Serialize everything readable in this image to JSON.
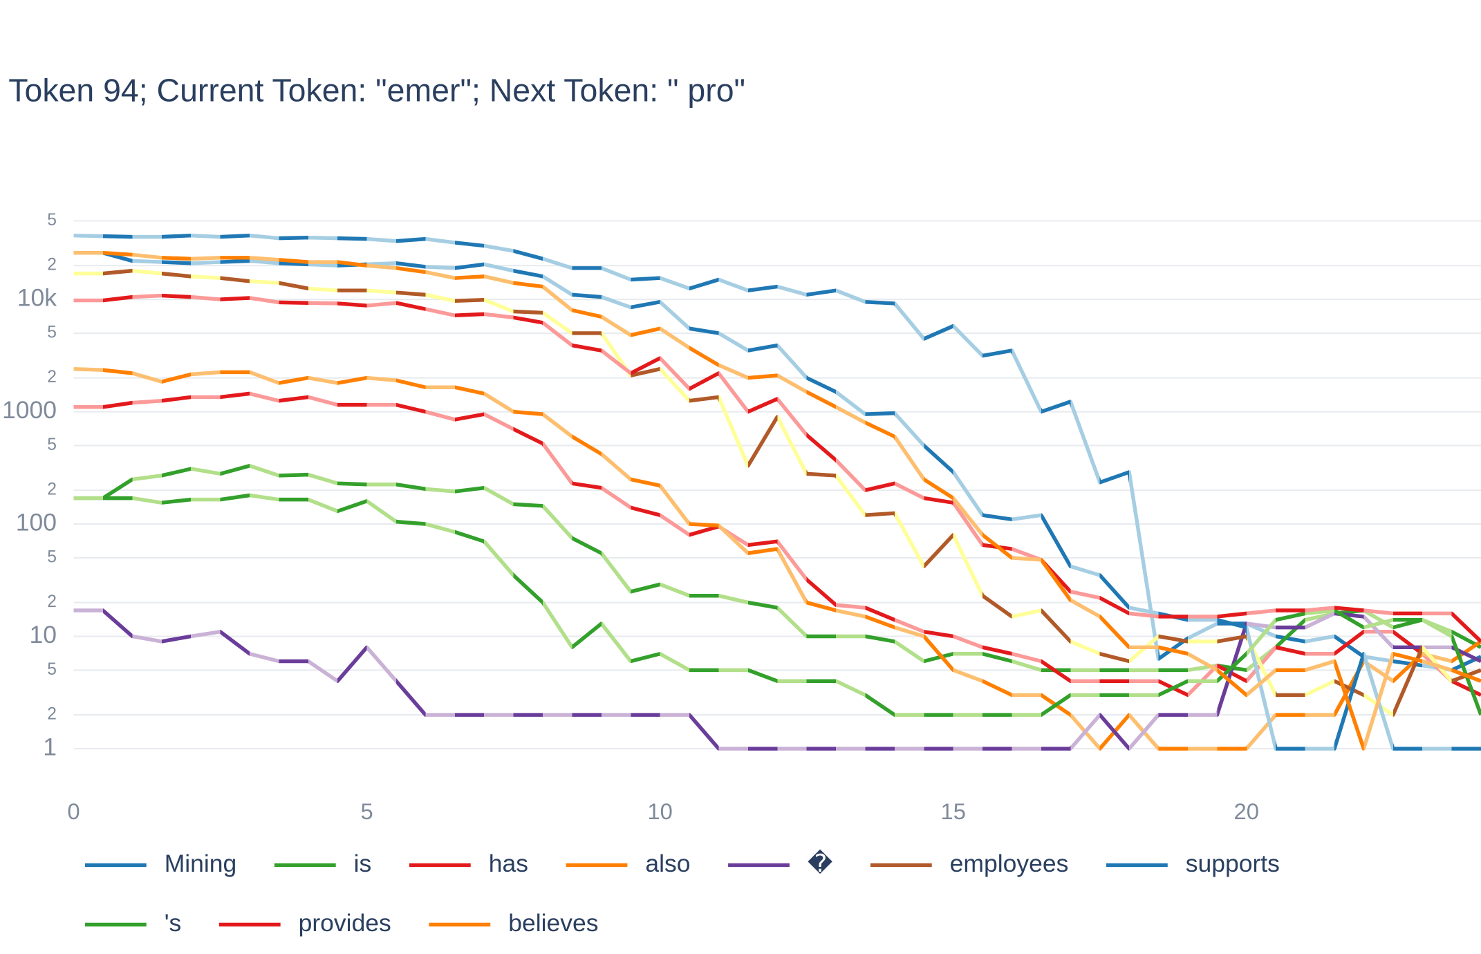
{
  "chart_data": {
    "type": "line",
    "title": "Token 94; Current Token: \"emer\"; Next Token: \" pro\"",
    "log_y": true,
    "grid": true,
    "xlim": [
      0,
      24
    ],
    "xticks": [
      0,
      5,
      10,
      15,
      20
    ],
    "ylim": [
      0.4,
      80000
    ],
    "yticks": [
      1,
      2,
      5,
      10,
      {
        "value": 20,
        "label": "2"
      },
      {
        "value": 50,
        "label": "5"
      },
      100,
      {
        "value": 200,
        "label": "2"
      },
      {
        "value": 500,
        "label": "5"
      },
      1000,
      {
        "value": 2000,
        "label": "2"
      },
      {
        "value": 5000,
        "label": "5"
      },
      {
        "value": 10000,
        "label": "10k"
      },
      {
        "value": 20000,
        "label": "2"
      },
      {
        "value": 50000,
        "label": "5"
      }
    ],
    "x": [
      0,
      0.5,
      1,
      1.5,
      2,
      2.5,
      3,
      3.5,
      4,
      4.5,
      5,
      5.5,
      6,
      6.5,
      7,
      7.5,
      8,
      8.5,
      9,
      9.5,
      10,
      10.5,
      11,
      11.5,
      12,
      12.5,
      13,
      13.5,
      14,
      14.5,
      15,
      15.5,
      16,
      16.5,
      17,
      17.5,
      18,
      18.5,
      19,
      19.5,
      20,
      20.5,
      21,
      21.5,
      22,
      22.5,
      23,
      23.5,
      24
    ],
    "series": [
      {
        "name": "Mining",
        "color": "#1f78b4",
        "alt_color": "#a6cee3",
        "values": [
          37000,
          36500,
          36000,
          36000,
          37000,
          36000,
          37000,
          35000,
          35500,
          35000,
          34500,
          33000,
          34500,
          32000,
          30000,
          27000,
          23000,
          19000,
          19000,
          15000,
          15500,
          12500,
          15000,
          12000,
          13000,
          11000,
          12000,
          9500,
          9200,
          4450,
          5800,
          3150,
          3500,
          1000,
          1230,
          235,
          290,
          6.3,
          9.6,
          13,
          13,
          10,
          9,
          10,
          6.6,
          6,
          5.5,
          5,
          6.6
        ]
      },
      {
        "name": "is",
        "color": "#33a02c",
        "alt_color": "#b2df8a",
        "values": [
          170,
          170,
          250,
          270,
          310,
          280,
          330,
          270,
          275,
          230,
          225,
          225,
          205,
          195,
          210,
          150,
          145,
          75,
          55,
          25,
          29,
          23,
          23,
          20,
          18,
          10,
          10,
          10,
          9,
          6,
          7,
          7,
          6,
          5,
          5,
          5,
          5,
          5,
          5,
          5.5,
          5,
          8,
          14,
          16,
          17,
          12,
          14,
          11,
          8
        ]
      },
      {
        "name": "has",
        "color": "#e31a1c",
        "alt_color": "#fb9a99",
        "values": [
          1100,
          1100,
          1200,
          1250,
          1350,
          1350,
          1450,
          1250,
          1350,
          1150,
          1150,
          1150,
          1000,
          850,
          950,
          700,
          520,
          230,
          210,
          140,
          120,
          80,
          95,
          65,
          70,
          32,
          19,
          18,
          14,
          11,
          10,
          8,
          7,
          6,
          4,
          4,
          4,
          4,
          3,
          5.5,
          4,
          8,
          7,
          7,
          11,
          11,
          7,
          4,
          3
        ]
      },
      {
        "name": "also",
        "color": "#ff7f00",
        "alt_color": "#fdbf6f",
        "values": [
          2400,
          2350,
          2200,
          1850,
          2150,
          2250,
          2250,
          1800,
          2000,
          1800,
          2000,
          1900,
          1650,
          1650,
          1450,
          1000,
          950,
          600,
          420,
          250,
          220,
          100,
          97,
          55,
          60,
          20,
          17,
          15,
          12,
          10,
          5,
          4,
          3,
          3,
          2,
          1,
          2,
          1,
          1,
          1,
          1,
          2,
          2,
          2,
          6,
          4,
          7,
          6,
          9
        ]
      },
      {
        "name": "�",
        "color": "#6a3d9a",
        "alt_color": "#cab2d6",
        "values": [
          17,
          17,
          10,
          9,
          10,
          11,
          7,
          6,
          6,
          4,
          8,
          4,
          2,
          2,
          2,
          2,
          2,
          2,
          2,
          2,
          2,
          2,
          1,
          1,
          1,
          1,
          1,
          1,
          1,
          1,
          1,
          1,
          1,
          1,
          1,
          2,
          1,
          2,
          2,
          2,
          13,
          12,
          12,
          16,
          15,
          8,
          8,
          8,
          6
        ]
      },
      {
        "name": "employees",
        "color": "#b15928",
        "alt_color": "#ffff99",
        "values": [
          17000,
          17000,
          18000,
          17000,
          16000,
          15500,
          14500,
          14000,
          12500,
          12000,
          12000,
          11500,
          11000,
          9700,
          9900,
          7800,
          7600,
          5000,
          5000,
          2100,
          2400,
          1250,
          1350,
          330,
          900,
          280,
          270,
          120,
          125,
          42,
          80,
          23,
          15,
          17,
          9,
          7,
          6,
          10,
          9,
          9,
          10,
          3,
          3,
          4,
          3,
          2,
          8,
          4,
          5
        ]
      },
      {
        "name": "supports",
        "color": "#1f78b4",
        "alt_color": "#a6cee3",
        "values": [
          26000,
          26000,
          22000,
          21500,
          21000,
          21500,
          22000,
          21000,
          20500,
          20000,
          20500,
          21000,
          19500,
          19000,
          20500,
          18000,
          16000,
          11000,
          10500,
          8500,
          9500,
          5500,
          5000,
          3500,
          3900,
          2000,
          1500,
          950,
          970,
          500,
          290,
          120,
          110,
          120,
          42,
          35,
          18,
          16,
          14,
          14,
          12,
          1,
          1,
          1,
          7,
          1,
          1,
          1,
          1
        ]
      },
      {
        "name": "'s",
        "color": "#33a02c",
        "alt_color": "#b2df8a",
        "values": [
          170,
          170,
          170,
          155,
          165,
          165,
          180,
          165,
          165,
          130,
          160,
          105,
          100,
          85,
          70,
          35,
          20,
          8,
          13,
          6,
          7,
          5,
          5,
          5,
          4,
          4,
          4,
          3,
          2,
          2,
          2,
          2,
          2,
          2,
          3,
          3,
          3,
          3,
          4,
          4,
          7,
          14,
          16,
          17,
          12,
          14,
          14,
          10,
          2
        ]
      },
      {
        "name": "provides",
        "color": "#e31a1c",
        "alt_color": "#fb9a99",
        "values": [
          9800,
          9800,
          10500,
          10800,
          10500,
          10000,
          10300,
          9400,
          9300,
          9200,
          8800,
          9300,
          8200,
          7200,
          7400,
          6900,
          6200,
          3900,
          3500,
          2200,
          3000,
          1600,
          2200,
          1000,
          1300,
          620,
          370,
          200,
          230,
          170,
          155,
          65,
          60,
          48,
          25,
          22,
          16,
          15,
          15,
          15,
          16,
          17,
          17,
          18,
          17,
          16,
          16,
          16,
          9
        ]
      },
      {
        "name": "believes",
        "color": "#ff7f00",
        "alt_color": "#fdbf6f",
        "values": [
          26000,
          26000,
          25000,
          23500,
          23000,
          23500,
          23500,
          22500,
          21500,
          21500,
          20000,
          19000,
          17500,
          15500,
          16000,
          14000,
          13000,
          8000,
          7000,
          4800,
          5500,
          3700,
          2600,
          2000,
          2100,
          1500,
          1100,
          800,
          600,
          250,
          170,
          80,
          50,
          48,
          21,
          15,
          8,
          8,
          7,
          5,
          3,
          5,
          5,
          6,
          1,
          7,
          6,
          5,
          4
        ]
      }
    ]
  }
}
